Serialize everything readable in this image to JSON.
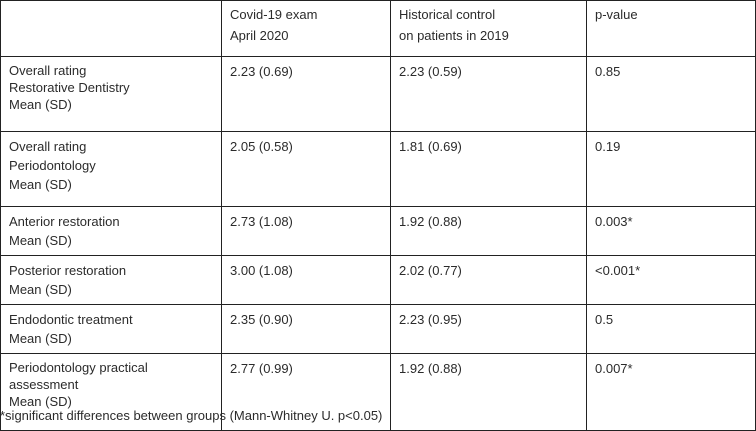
{
  "table": {
    "headers": [
      [],
      [
        "Covid-19 exam",
        "April 2020"
      ],
      [
        "Historical control",
        "on patients in 2019"
      ],
      [
        "p-value"
      ]
    ],
    "rows": [
      {
        "label": [
          "Overall rating",
          "Restorative Dentistry",
          "Mean (SD)"
        ],
        "covid": "2.23 (0.69)",
        "control": "2.23 (0.59)",
        "p": "0.85"
      },
      {
        "label": [
          "Overall rating",
          "Periodontology",
          "Mean (SD)"
        ],
        "covid": "2.05 (0.58)",
        "control": "1.81 (0.69)",
        "p": "0.19"
      },
      {
        "label": [
          "Anterior restoration",
          "Mean (SD)"
        ],
        "covid": "2.73 (1.08)",
        "control": "1.92 (0.88)",
        "p": "0.003*"
      },
      {
        "label": [
          "Posterior restoration",
          "Mean (SD)"
        ],
        "covid": "3.00 (1.08)",
        "control": "2.02 (0.77)",
        "p": "<0.001*"
      },
      {
        "label": [
          "Endodontic treatment",
          "Mean (SD)"
        ],
        "covid": "2.35 (0.90)",
        "control": "2.23 (0.95)",
        "p": "0.5"
      },
      {
        "label": [
          "Periodontology practical",
          "assessment",
          "Mean (SD)"
        ],
        "covid": "2.77 (0.99)",
        "control": "1.92 (0.88)",
        "p": "0.007*"
      }
    ]
  },
  "footnote": "*significant differences between groups (Mann-Whitney U. p<0.05)"
}
